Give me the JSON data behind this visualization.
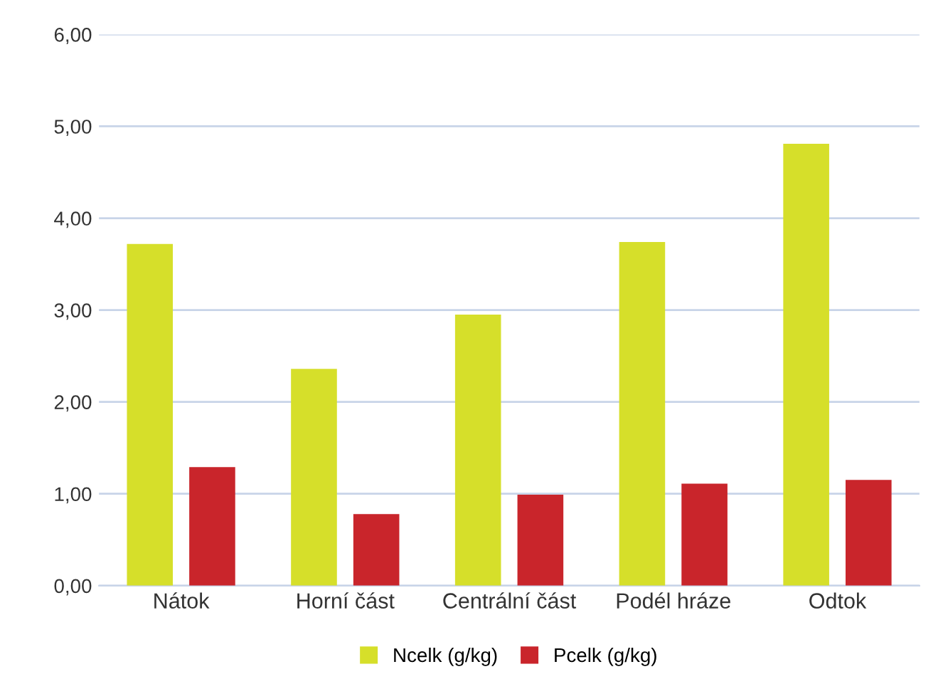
{
  "chart_data": {
    "type": "bar",
    "categories": [
      "Nátok",
      "Horní část",
      "Centrální část",
      "Podél hráze",
      "Odtok"
    ],
    "series": [
      {
        "name": "Ncelk (g/kg)",
        "color": "#d6df2a",
        "values": [
          3.72,
          2.36,
          2.95,
          3.74,
          4.81
        ]
      },
      {
        "name": "Pcelk (g/kg)",
        "color": "#c9252b",
        "values": [
          1.29,
          0.78,
          0.99,
          1.11,
          1.15
        ]
      }
    ],
    "ylim": [
      0,
      6
    ],
    "yticks": [
      {
        "value": 0,
        "label": "0,00"
      },
      {
        "value": 1,
        "label": "1,00"
      },
      {
        "value": 2,
        "label": "2,00"
      },
      {
        "value": 3,
        "label": "3,00"
      },
      {
        "value": 4,
        "label": "4,00"
      },
      {
        "value": 5,
        "label": "5,00"
      },
      {
        "value": 6,
        "label": "6,00"
      }
    ],
    "grid": "y",
    "legend": "bottom"
  }
}
